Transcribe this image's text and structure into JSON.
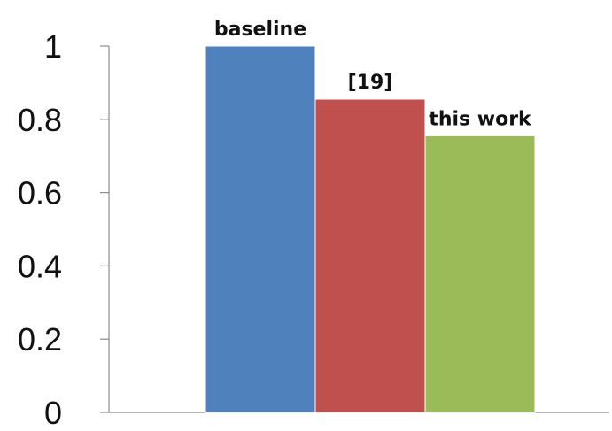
{
  "chart_data": {
    "type": "bar",
    "categories": [
      "baseline",
      "[19]",
      "this work"
    ],
    "values": [
      1.0,
      0.855,
      0.755
    ],
    "data_labels": [
      "baseline",
      "[19]",
      "this work"
    ],
    "colors": [
      "#4f81bd",
      "#c0504d",
      "#9bbb59"
    ],
    "ylim": [
      0,
      1
    ],
    "yticks": [
      0,
      0.2,
      0.4,
      0.6,
      0.8,
      1
    ],
    "ytick_labels": [
      "0",
      "0.2",
      "0.4",
      "0.6",
      "0.8",
      "1"
    ],
    "grid": false,
    "legend": "none"
  }
}
